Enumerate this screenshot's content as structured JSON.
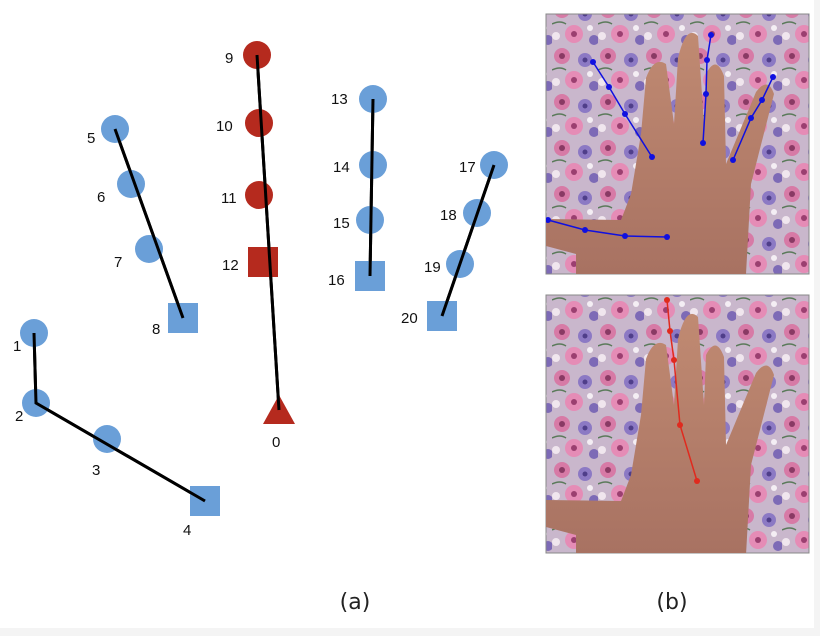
{
  "colors": {
    "finger": "#6a9fd8",
    "index_finger": "#b52a1e",
    "skeleton_line": "#000000",
    "overlay_blue": "#1010e0",
    "overlay_red": "#e02a1e"
  },
  "shapes": {
    "joint": "circle",
    "finger_base": "square",
    "wrist": "triangle"
  },
  "skeleton": {
    "joints": [
      {
        "id": "0",
        "label": "0",
        "shape": "triangle",
        "group": "index"
      },
      {
        "id": "1",
        "label": "1",
        "shape": "circle",
        "group": "thumb"
      },
      {
        "id": "2",
        "label": "2",
        "shape": "circle",
        "group": "thumb"
      },
      {
        "id": "3",
        "label": "3",
        "shape": "circle",
        "group": "thumb"
      },
      {
        "id": "4",
        "label": "4",
        "shape": "square",
        "group": "thumb"
      },
      {
        "id": "5",
        "label": "5",
        "shape": "circle",
        "group": "f2"
      },
      {
        "id": "6",
        "label": "6",
        "shape": "circle",
        "group": "f2"
      },
      {
        "id": "7",
        "label": "7",
        "shape": "circle",
        "group": "f2"
      },
      {
        "id": "8",
        "label": "8",
        "shape": "square",
        "group": "f2"
      },
      {
        "id": "9",
        "label": "9",
        "shape": "circle",
        "group": "index"
      },
      {
        "id": "10",
        "label": "10",
        "shape": "circle",
        "group": "index"
      },
      {
        "id": "11",
        "label": "11",
        "shape": "circle",
        "group": "index"
      },
      {
        "id": "12",
        "label": "12",
        "shape": "square",
        "group": "index"
      },
      {
        "id": "13",
        "label": "13",
        "shape": "circle",
        "group": "f4"
      },
      {
        "id": "14",
        "label": "14",
        "shape": "circle",
        "group": "f4"
      },
      {
        "id": "15",
        "label": "15",
        "shape": "circle",
        "group": "f4"
      },
      {
        "id": "16",
        "label": "16",
        "shape": "square",
        "group": "f4"
      },
      {
        "id": "17",
        "label": "17",
        "shape": "circle",
        "group": "f5"
      },
      {
        "id": "18",
        "label": "18",
        "shape": "circle",
        "group": "f5"
      },
      {
        "id": "19",
        "label": "19",
        "shape": "circle",
        "group": "f5"
      },
      {
        "id": "20",
        "label": "20",
        "shape": "square",
        "group": "f5"
      }
    ],
    "chains": [
      {
        "name": "thumb",
        "from": "1",
        "to": "4",
        "joints": [
          "1",
          "2",
          "3",
          "4"
        ]
      },
      {
        "name": "finger-5-8",
        "from": "5",
        "to": "8",
        "joints": [
          "5",
          "6",
          "7",
          "8"
        ]
      },
      {
        "name": "finger-9-0",
        "from": "9",
        "to": "0",
        "joints": [
          "9",
          "10",
          "11",
          "12",
          "0"
        ]
      },
      {
        "name": "finger-13-16",
        "from": "13",
        "to": "16",
        "joints": [
          "13",
          "14",
          "15",
          "16"
        ]
      },
      {
        "name": "finger-17-20",
        "from": "17",
        "to": "20",
        "joints": [
          "17",
          "18",
          "19",
          "20"
        ]
      }
    ]
  },
  "photos": [
    {
      "name": "top",
      "overlay_color": "blue",
      "overlay_lines": 5
    },
    {
      "name": "bottom",
      "overlay_color": "red",
      "overlay_lines": 1
    }
  ],
  "captions": {
    "a": "(a)",
    "b": "(b)"
  }
}
